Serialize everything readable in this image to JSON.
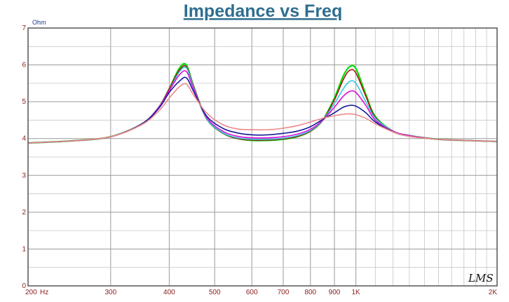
{
  "chart_data": {
    "type": "line",
    "title": "Impedance vs Freq",
    "ylabel": "Ohm",
    "x_unit": "Hz",
    "x_scale": "log",
    "xlim": [
      200,
      2000
    ],
    "ylim": [
      0,
      7
    ],
    "yticks": [
      0,
      1,
      2,
      3,
      4,
      5,
      6,
      7
    ],
    "xticks": [
      {
        "value": 200,
        "label": "200"
      },
      {
        "value": 300,
        "label": "300"
      },
      {
        "value": 400,
        "label": "400"
      },
      {
        "value": 500,
        "label": "500"
      },
      {
        "value": 600,
        "label": "600"
      },
      {
        "value": 700,
        "label": "700"
      },
      {
        "value": 800,
        "label": "800"
      },
      {
        "value": 900,
        "label": "900"
      },
      {
        "value": 1000,
        "label": "1K"
      },
      {
        "value": 2000,
        "label": "2K"
      }
    ],
    "grid": true,
    "x": [
      200,
      250,
      300,
      350,
      380,
      400,
      420,
      435,
      450,
      480,
      520,
      560,
      600,
      650,
      700,
      750,
      800,
      850,
      900,
      940,
      970,
      1000,
      1050,
      1100,
      1200,
      1300,
      1500,
      1700,
      2000
    ],
    "series": [
      {
        "color": "#00dd00",
        "values": [
          3.88,
          3.94,
          4.05,
          4.4,
          4.85,
          5.35,
          5.9,
          6.0,
          5.45,
          4.55,
          4.15,
          4.0,
          3.95,
          3.95,
          3.98,
          4.05,
          4.2,
          4.5,
          5.1,
          5.7,
          5.95,
          5.9,
          5.2,
          4.6,
          4.2,
          4.08,
          3.98,
          3.95,
          3.92
        ]
      },
      {
        "color": "#aa1111",
        "values": [
          3.88,
          3.94,
          4.05,
          4.4,
          4.85,
          5.35,
          5.85,
          5.95,
          5.45,
          4.55,
          4.15,
          4.0,
          3.96,
          3.96,
          3.99,
          4.06,
          4.2,
          4.5,
          5.05,
          5.6,
          5.85,
          5.78,
          5.15,
          4.58,
          4.2,
          4.08,
          3.98,
          3.95,
          3.92
        ]
      },
      {
        "color": "#33ccdd",
        "values": [
          3.88,
          3.94,
          4.05,
          4.4,
          4.85,
          5.3,
          5.8,
          5.92,
          5.42,
          4.55,
          4.16,
          4.02,
          3.98,
          3.98,
          4.01,
          4.08,
          4.22,
          4.5,
          4.95,
          5.35,
          5.55,
          5.5,
          5.0,
          4.55,
          4.2,
          4.08,
          3.98,
          3.95,
          3.92
        ]
      },
      {
        "color": "#dd11dd",
        "values": [
          3.88,
          3.94,
          4.05,
          4.4,
          4.85,
          5.3,
          5.72,
          5.82,
          5.38,
          4.58,
          4.2,
          4.06,
          4.02,
          4.02,
          4.05,
          4.12,
          4.25,
          4.5,
          4.85,
          5.15,
          5.28,
          5.25,
          4.9,
          4.5,
          4.2,
          4.08,
          3.98,
          3.95,
          3.92
        ]
      },
      {
        "color": "#1a1a99",
        "values": [
          3.88,
          3.94,
          4.05,
          4.4,
          4.82,
          5.25,
          5.55,
          5.65,
          5.3,
          4.62,
          4.28,
          4.15,
          4.1,
          4.1,
          4.14,
          4.2,
          4.32,
          4.52,
          4.7,
          4.85,
          4.9,
          4.88,
          4.7,
          4.45,
          4.18,
          4.06,
          3.98,
          3.95,
          3.92
        ]
      },
      {
        "color": "#ee8888",
        "values": [
          3.88,
          3.94,
          4.05,
          4.38,
          4.75,
          5.1,
          5.4,
          5.48,
          5.2,
          4.7,
          4.38,
          4.26,
          4.24,
          4.24,
          4.28,
          4.35,
          4.45,
          4.55,
          4.62,
          4.66,
          4.67,
          4.65,
          4.55,
          4.4,
          4.18,
          4.06,
          3.98,
          3.95,
          3.92
        ]
      }
    ]
  },
  "watermark": "LMS"
}
